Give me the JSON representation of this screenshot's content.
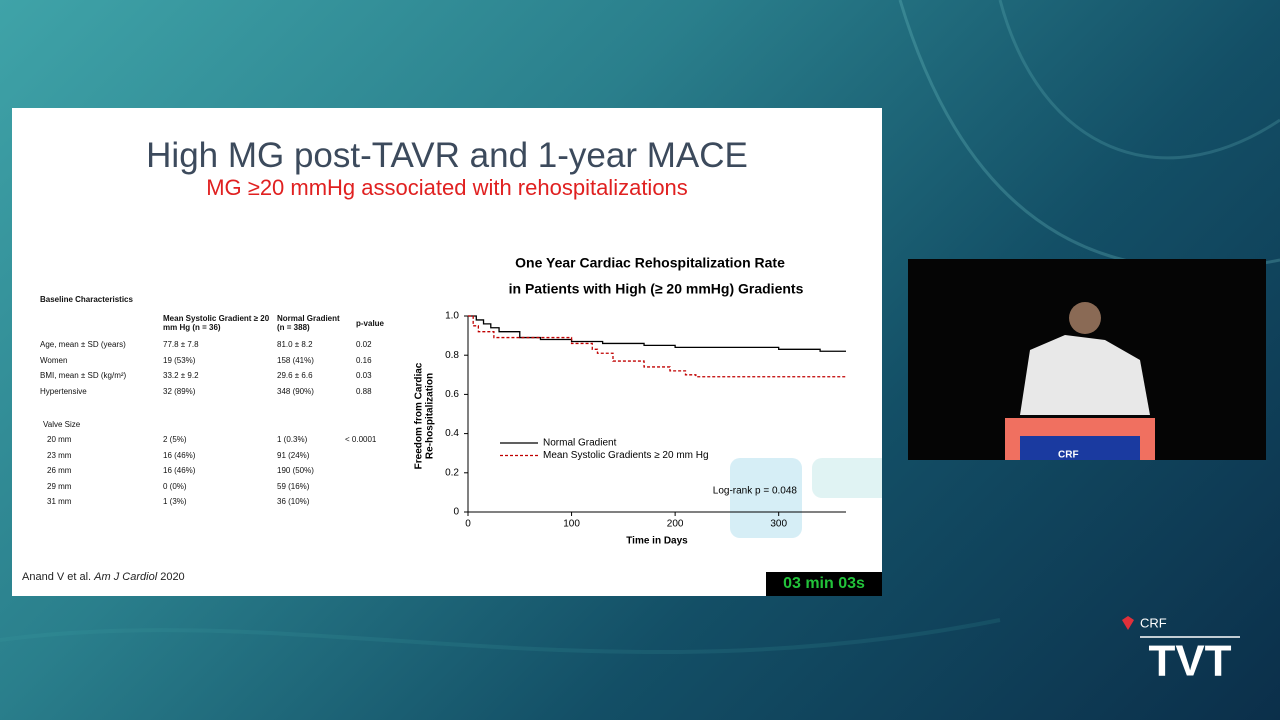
{
  "slide": {
    "title": "High MG post-TAVR and 1-year MACE",
    "subtitle": "MG ≥20 mmHg associated with rehospitalizations",
    "table": {
      "title": "Baseline Characteristics",
      "columns": [
        "Mean Systolic Gradient ≥ 20 mm Hg (n = 36)",
        "Normal Gradient (n = 388)",
        "p-value"
      ],
      "rows": [
        {
          "label": "Age, mean ± SD (years)",
          "high": "77.8 ± 7.8",
          "normal": "81.0 ± 8.2",
          "p": "0.02"
        },
        {
          "label": "Women",
          "high": "19 (53%)",
          "normal": "158 (41%)",
          "p": "0.16"
        },
        {
          "label": "BMI, mean ± SD (kg/m²)",
          "high": "33.2 ± 9.2",
          "normal": "29.6 ± 6.6",
          "p": "0.03"
        },
        {
          "label": "Hypertensive",
          "high": "32 (89%)",
          "normal": "348 (90%)",
          "p": "0.88"
        }
      ],
      "section": "Valve Size",
      "section_rows": [
        {
          "label": "20 mm",
          "high": "2 (5%)",
          "normal": "1 (0.3%)",
          "p": "< 0.0001"
        },
        {
          "label": "23 mm",
          "high": "16 (46%)",
          "normal": "91 (24%)"
        },
        {
          "label": "26 mm",
          "high": "16 (46%)",
          "normal": "190 (50%)"
        },
        {
          "label": "29 mm",
          "high": "0 (0%)",
          "normal": "59 (16%)"
        },
        {
          "label": "31 mm",
          "high": "1 (3%)",
          "normal": "36 (10%)"
        }
      ]
    },
    "citation": {
      "authors": "Anand V et al.",
      "journal": "Am J Cardiol",
      "year": "2020"
    },
    "timer": "03 min 03s"
  },
  "chart_data": {
    "type": "line",
    "title": [
      "One Year Cardiac Rehospitalization Rate",
      "in Patients with High (≥ 20 mmHg) Gradients"
    ],
    "x_label": "Time in Days",
    "y_label": [
      "Freedom from Cardiac",
      "Re-hospitalization"
    ],
    "annotation": "Log-rank p = 0.048",
    "step": true,
    "xlim": [
      0,
      365
    ],
    "xticks": [
      0,
      100,
      200,
      300
    ],
    "ylim": [
      0,
      1
    ],
    "yticks": [
      0,
      0.2,
      0.4,
      0.6,
      0.8,
      {
        "value": 1,
        "label": "1.0"
      }
    ],
    "series": [
      {
        "name": "Normal Gradient",
        "color": "#000000",
        "line_style": "solid",
        "x": [
          0,
          8,
          15,
          22,
          30,
          50,
          70,
          100,
          130,
          170,
          200,
          260,
          300,
          340,
          365
        ],
        "values": [
          1.0,
          0.98,
          0.96,
          0.94,
          0.92,
          0.89,
          0.88,
          0.87,
          0.86,
          0.85,
          0.84,
          0.84,
          0.83,
          0.82,
          0.82
        ]
      },
      {
        "name": "Mean Systolic Gradients ≥ 20 mm Hg",
        "color": "#c00000",
        "line_style": "dashed",
        "x": [
          0,
          5,
          10,
          25,
          50,
          100,
          120,
          125,
          140,
          170,
          195,
          210,
          220,
          365
        ],
        "values": [
          1.0,
          0.95,
          0.92,
          0.89,
          0.89,
          0.86,
          0.83,
          0.81,
          0.77,
          0.74,
          0.72,
          0.7,
          0.69,
          0.69
        ]
      }
    ]
  },
  "branding": {
    "podium": "CRF",
    "logo_top": "CRF",
    "logo_bottom": "TVT"
  }
}
